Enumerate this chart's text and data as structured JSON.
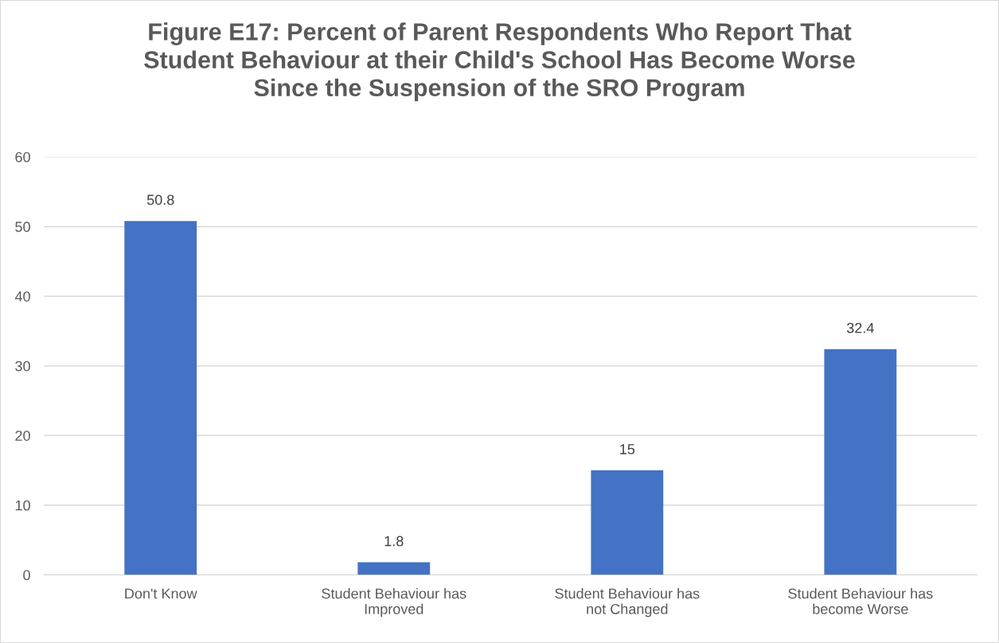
{
  "chart_data": {
    "type": "bar",
    "title": "Figure E17: Percent of Parent Respondents Who Report That Student Behaviour at their Child's School Has Become Worse Since the Suspension of the SRO Program",
    "categories": [
      "Don't Know",
      "Student Behaviour has Improved",
      "Student Behaviour has not Changed",
      "Student Behaviour has become Worse"
    ],
    "values": [
      50.8,
      1.8,
      15,
      32.4
    ],
    "color": "#4472c4",
    "ylim": [
      0,
      60
    ],
    "yticks": [
      0,
      10,
      20,
      30,
      40,
      50,
      60
    ],
    "grid": "y",
    "data_labels": true
  }
}
